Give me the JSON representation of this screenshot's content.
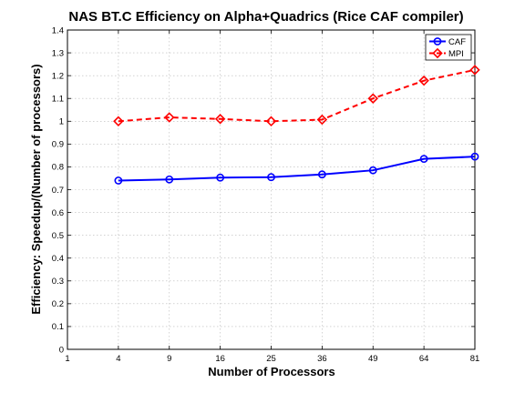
{
  "chart_data": {
    "type": "line",
    "title": "NAS BT.C Efficiency on Alpha+Quadrics (Rice CAF compiler)",
    "xlabel": "Number of Processors",
    "ylabel": "Efficiency: Speedup/(Number of processors)",
    "x_scale": "sqrt",
    "xlim": [
      1,
      81
    ],
    "ylim": [
      0,
      1.4
    ],
    "x_ticks": [
      1,
      4,
      9,
      16,
      25,
      36,
      49,
      64,
      81
    ],
    "y_ticks": [
      0,
      0.1,
      0.2,
      0.3,
      0.4,
      0.5,
      0.6,
      0.7,
      0.8,
      0.9,
      1,
      1.1,
      1.2,
      1.3,
      1.4
    ],
    "grid": true,
    "legend_position": "top-right",
    "x": [
      4,
      9,
      16,
      25,
      36,
      49,
      64,
      81
    ],
    "series": [
      {
        "name": "CAF",
        "color": "#0000ff",
        "marker": "circle",
        "line_style": "solid",
        "values": [
          0.74,
          0.745,
          0.753,
          0.755,
          0.767,
          0.785,
          0.835,
          0.845
        ]
      },
      {
        "name": "MPI",
        "color": "#ff0000",
        "marker": "diamond",
        "line_style": "dashed",
        "values": [
          1.0,
          1.017,
          1.01,
          1.0,
          1.007,
          1.1,
          1.178,
          1.225
        ]
      }
    ]
  }
}
